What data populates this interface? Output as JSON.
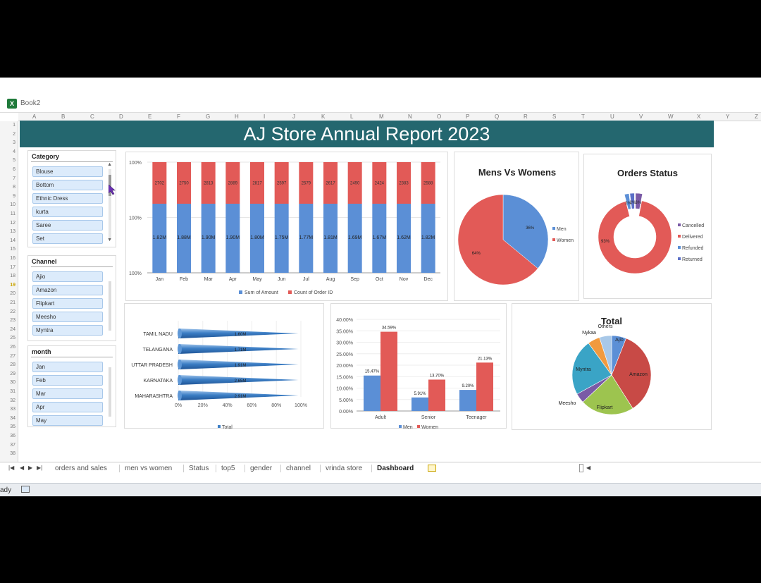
{
  "window": {
    "doc_title": "Book2"
  },
  "columns": [
    "A",
    "B",
    "C",
    "D",
    "E",
    "F",
    "G",
    "H",
    "I",
    "J",
    "K",
    "L",
    "M",
    "N",
    "O",
    "P",
    "Q",
    "R",
    "S",
    "T",
    "U",
    "V",
    "W",
    "X",
    "Y",
    "Z"
  ],
  "rows": [
    "1",
    "2",
    "3",
    "4",
    "5",
    "6",
    "7",
    "8",
    "9",
    "10",
    "11",
    "12",
    "13",
    "14",
    "15",
    "16",
    "17",
    "18",
    "19",
    "20",
    "21",
    "22",
    "23",
    "24",
    "25",
    "26",
    "27",
    "28",
    "29",
    "30",
    "31",
    "32",
    "33",
    "34",
    "35",
    "36",
    "37",
    "38"
  ],
  "selected_row": "19",
  "banner": {
    "title": "AJ Store Annual Report 2023"
  },
  "slicers": {
    "category": {
      "title": "Category",
      "items": [
        "Blouse",
        "Bottom",
        "Ethnic Dress",
        "kurta",
        "Saree",
        "Set"
      ]
    },
    "channel": {
      "title": "Channel",
      "items": [
        "Ajio",
        "Amazon",
        "Flipkart",
        "Meesho",
        "Myntra"
      ]
    },
    "month": {
      "title": "month",
      "items": [
        "Jan",
        "Feb",
        "Mar",
        "Apr",
        "May"
      ]
    }
  },
  "colors": {
    "blue": "#5b8fd6",
    "red": "#e25a57",
    "green": "#9dc44f",
    "teal": "#3aa4c6",
    "purple": "#7a5aa6",
    "orange": "#f19a3e",
    "lightblue": "#a8c8e8",
    "banner": "#24676f"
  },
  "chart_data": [
    {
      "type": "bar",
      "stacked": true,
      "categories": [
        "Jan",
        "Feb",
        "Mar",
        "Apr",
        "May",
        "Jun",
        "Jul",
        "Aug",
        "Sep",
        "Oct",
        "Nov",
        "Dec"
      ],
      "y_ticks": [
        "100%",
        "100%",
        "100%"
      ],
      "series": [
        {
          "name": "Sum of Amount",
          "labels": [
            "1.82M",
            "1.88M",
            "1.90M",
            "1.90M",
            "1.80M",
            "1.75M",
            "1.77M",
            "1.81M",
            "1.69M",
            "1.67M",
            "1.62M",
            "1.82M"
          ]
        },
        {
          "name": "Count of Order ID",
          "labels": [
            "2702",
            "2750",
            "2813",
            "2889",
            "2817",
            "2597",
            "2579",
            "2617",
            "2490",
            "2424",
            "2383",
            "2588"
          ]
        }
      ]
    },
    {
      "type": "pie",
      "title": "Mens Vs Womens",
      "categories": [
        "Men",
        "Women"
      ],
      "values": [
        36,
        64
      ],
      "data_labels": [
        "36%",
        "64%"
      ]
    },
    {
      "type": "pie",
      "subtype": "doughnut",
      "title": "Orders Status",
      "categories": [
        "Cancelled",
        "Delivered",
        "Refunded",
        "Returned"
      ],
      "values": [
        3,
        93,
        2,
        2
      ],
      "data_labels": [
        "3%",
        "93%",
        "2%",
        "2%"
      ]
    },
    {
      "type": "bar",
      "orientation": "horizontal",
      "categories": [
        "TAMIL NADU",
        "TELANGANA",
        "UTTAR PRADESH",
        "KARNATAKA",
        "MAHARASHTRA"
      ],
      "series": [
        {
          "name": "Total",
          "values": [
            1.6,
            1.7,
            1.9,
            2.6,
            2.9
          ],
          "labels": [
            "1.60M",
            "1.71M",
            "1.91M",
            "2.65M",
            "2.91M"
          ]
        }
      ],
      "x_ticks": [
        "0%",
        "20%",
        "40%",
        "60%",
        "80%",
        "100%"
      ]
    },
    {
      "type": "bar",
      "categories": [
        "Adult",
        "Senior",
        "Teenager"
      ],
      "series": [
        {
          "name": "Men",
          "values": [
            15.47,
            5.91,
            9.2
          ],
          "labels": [
            "15.47%",
            "5.91%",
            "9.20%"
          ]
        },
        {
          "name": "Women",
          "values": [
            34.59,
            13.7,
            21.13
          ],
          "labels": [
            "34.59%",
            "13.70%",
            "21.13%"
          ]
        }
      ],
      "ylim": [
        0,
        40
      ],
      "y_ticks": [
        "0.00%",
        "5.00%",
        "10.00%",
        "15.00%",
        "20.00%",
        "25.00%",
        "30.00%",
        "35.00%",
        "40.00%"
      ]
    },
    {
      "type": "pie",
      "title": "Total",
      "categories": [
        "Ajio",
        "Amazon",
        "Flipkart",
        "Meesho",
        "Myntra",
        "Nykaa",
        "Others"
      ],
      "values": [
        6,
        35,
        22,
        4,
        23,
        5,
        5
      ]
    }
  ],
  "sheet_tabs": [
    "orders and sales",
    "men vs women",
    "Status",
    "top5",
    "gender",
    "channel",
    "vrinda store",
    "Dashboard"
  ],
  "active_tab": "Dashboard",
  "status": {
    "text": "ady"
  }
}
